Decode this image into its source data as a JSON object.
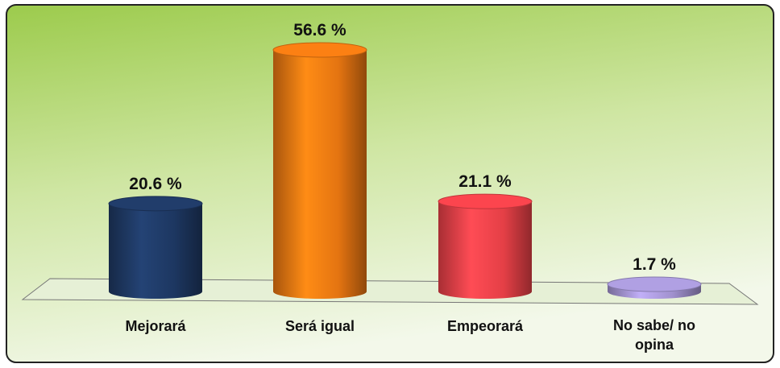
{
  "chart_data": {
    "type": "bar",
    "categories": [
      "Mejorará",
      "Será igual",
      "Empeorará",
      "No sabe/ no opina"
    ],
    "values": [
      20.6,
      56.6,
      21.1,
      1.7
    ],
    "value_labels": [
      "20.6 %",
      "56.6 %",
      "21.1 %",
      "1.7 %"
    ],
    "colors": [
      "#1f3a66",
      "#f07a12",
      "#f0424a",
      "#a898d8"
    ]
  }
}
